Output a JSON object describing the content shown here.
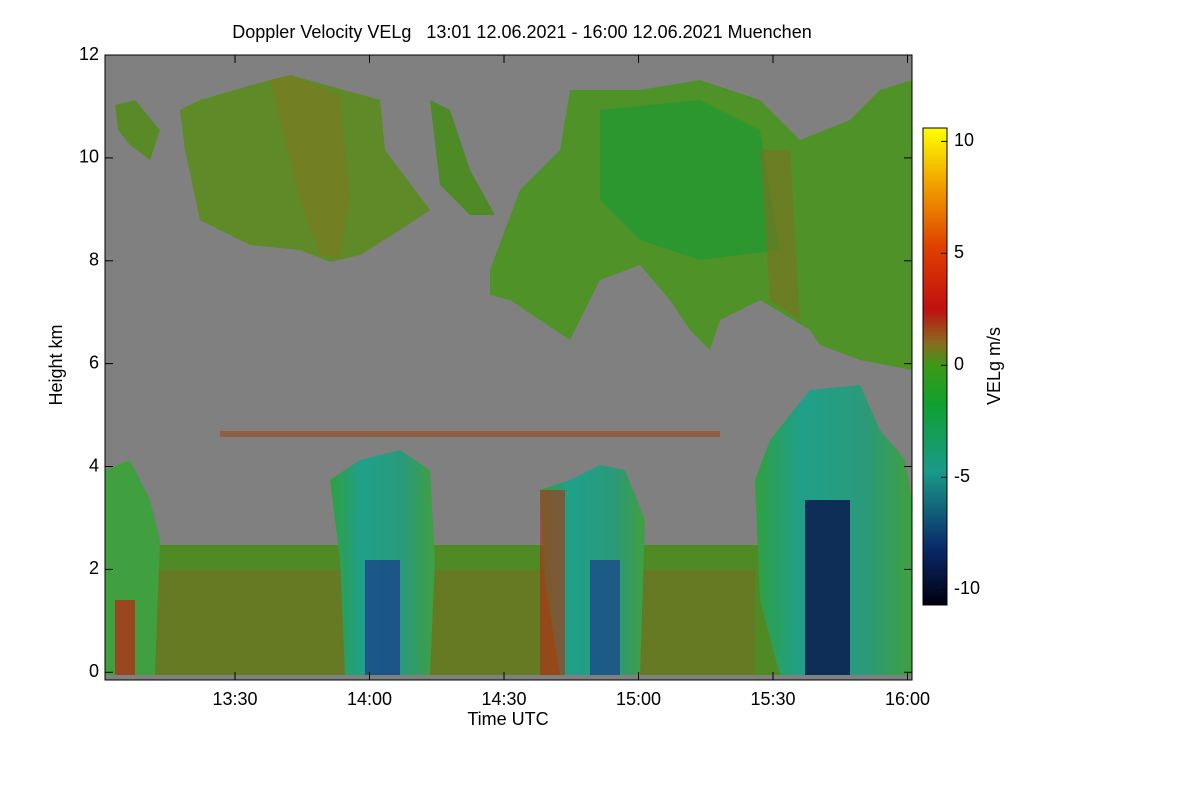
{
  "chart_data": {
    "type": "heatmap",
    "title": "Doppler Velocity VELg   13:01 12.06.2021 - 16:00 12.06.2021 Muenchen",
    "x_label": "Time UTC",
    "y_label": "Height km",
    "colorbar_label": "VELg m/s",
    "xlim": [
      781,
      961
    ],
    "xticks": [
      {
        "value": 810,
        "label": "13:30"
      },
      {
        "value": 840,
        "label": "14:00"
      },
      {
        "value": 870,
        "label": "14:30"
      },
      {
        "value": 900,
        "label": "15:00"
      },
      {
        "value": 930,
        "label": "15:30"
      },
      {
        "value": 960,
        "label": "16:00"
      }
    ],
    "ylim": [
      -0.15,
      12
    ],
    "yticks": [
      0,
      2,
      4,
      6,
      8,
      10,
      12
    ],
    "clim": [
      -10.7,
      10.6
    ],
    "cticks": [
      10,
      5,
      0,
      -5,
      -10
    ]
  }
}
